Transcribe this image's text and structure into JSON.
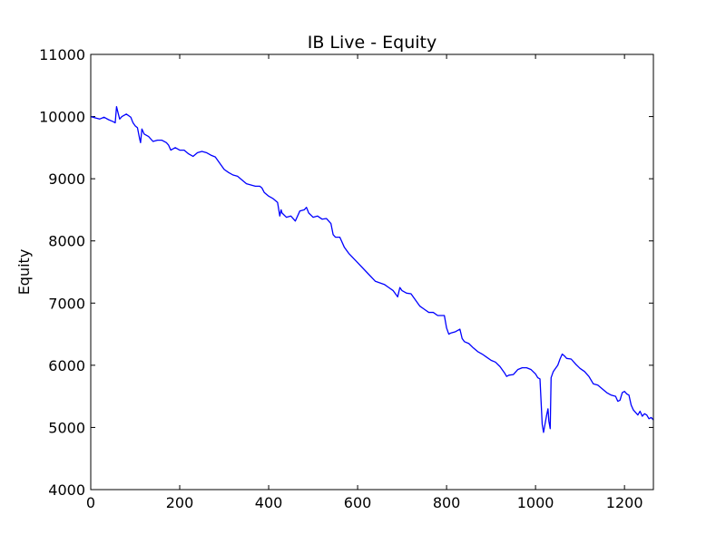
{
  "chart_data": {
    "type": "line",
    "title": "IB Live - Equity",
    "xlabel": "",
    "ylabel": "Equity",
    "xlim": [
      0,
      1265
    ],
    "ylim": [
      4000,
      11000
    ],
    "xticks": [
      0,
      200,
      400,
      600,
      800,
      1000,
      1200
    ],
    "yticks": [
      4000,
      5000,
      6000,
      7000,
      8000,
      9000,
      10000,
      11000
    ],
    "grid": false,
    "legend": "none",
    "series": [
      {
        "color": "#0000ff",
        "x": [
          0,
          10,
          20,
          30,
          40,
          50,
          55,
          58,
          60,
          65,
          70,
          80,
          90,
          95,
          100,
          105,
          110,
          112,
          115,
          120,
          130,
          140,
          150,
          160,
          170,
          175,
          180,
          190,
          200,
          210,
          220,
          230,
          240,
          250,
          260,
          270,
          280,
          290,
          300,
          310,
          320,
          330,
          340,
          350,
          360,
          370,
          380,
          385,
          390,
          400,
          410,
          420,
          425,
          428,
          430,
          440,
          450,
          460,
          470,
          480,
          485,
          490,
          500,
          510,
          520,
          530,
          540,
          545,
          550,
          560,
          570,
          580,
          600,
          620,
          640,
          660,
          670,
          680,
          690,
          695,
          700,
          710,
          720,
          730,
          740,
          750,
          760,
          770,
          780,
          790,
          795,
          800,
          805,
          810,
          820,
          830,
          835,
          840,
          850,
          860,
          870,
          880,
          890,
          900,
          910,
          920,
          930,
          935,
          940,
          950,
          960,
          970,
          980,
          990,
          1000,
          1005,
          1010,
          1015,
          1018,
          1020,
          1025,
          1028,
          1030,
          1033,
          1035,
          1040,
          1045,
          1050,
          1055,
          1060,
          1065,
          1070,
          1080,
          1090,
          1100,
          1110,
          1120,
          1130,
          1140,
          1150,
          1160,
          1170,
          1180,
          1185,
          1190,
          1195,
          1200,
          1205,
          1210,
          1215,
          1220,
          1225,
          1230,
          1235,
          1240,
          1245,
          1250,
          1255,
          1260,
          1265
        ],
        "y": [
          10000,
          9980,
          9960,
          9990,
          9950,
          9920,
          9900,
          10160,
          10100,
          9960,
          10000,
          10040,
          9990,
          9900,
          9850,
          9820,
          9640,
          9580,
          9800,
          9720,
          9680,
          9600,
          9620,
          9620,
          9580,
          9540,
          9460,
          9500,
          9460,
          9460,
          9400,
          9360,
          9420,
          9440,
          9420,
          9380,
          9350,
          9250,
          9150,
          9100,
          9060,
          9040,
          8980,
          8920,
          8900,
          8880,
          8880,
          8850,
          8780,
          8720,
          8680,
          8620,
          8400,
          8500,
          8450,
          8380,
          8400,
          8320,
          8480,
          8500,
          8540,
          8450,
          8380,
          8400,
          8350,
          8360,
          8280,
          8100,
          8060,
          8060,
          7900,
          7800,
          7650,
          7500,
          7350,
          7300,
          7250,
          7200,
          7100,
          7250,
          7200,
          7160,
          7150,
          7050,
          6950,
          6900,
          6850,
          6850,
          6800,
          6800,
          6800,
          6600,
          6500,
          6520,
          6540,
          6580,
          6430,
          6380,
          6350,
          6280,
          6220,
          6180,
          6130,
          6080,
          6050,
          5980,
          5880,
          5820,
          5840,
          5850,
          5930,
          5960,
          5960,
          5930,
          5860,
          5800,
          5780,
          5050,
          4920,
          5000,
          5200,
          5300,
          5100,
          4980,
          5800,
          5900,
          5950,
          6000,
          6100,
          6180,
          6150,
          6110,
          6100,
          6020,
          5950,
          5900,
          5820,
          5700,
          5680,
          5620,
          5560,
          5520,
          5500,
          5420,
          5440,
          5560,
          5580,
          5540,
          5520,
          5360,
          5280,
          5240,
          5200,
          5260,
          5180,
          5220,
          5200,
          5140,
          5160,
          5120
        ]
      }
    ]
  }
}
